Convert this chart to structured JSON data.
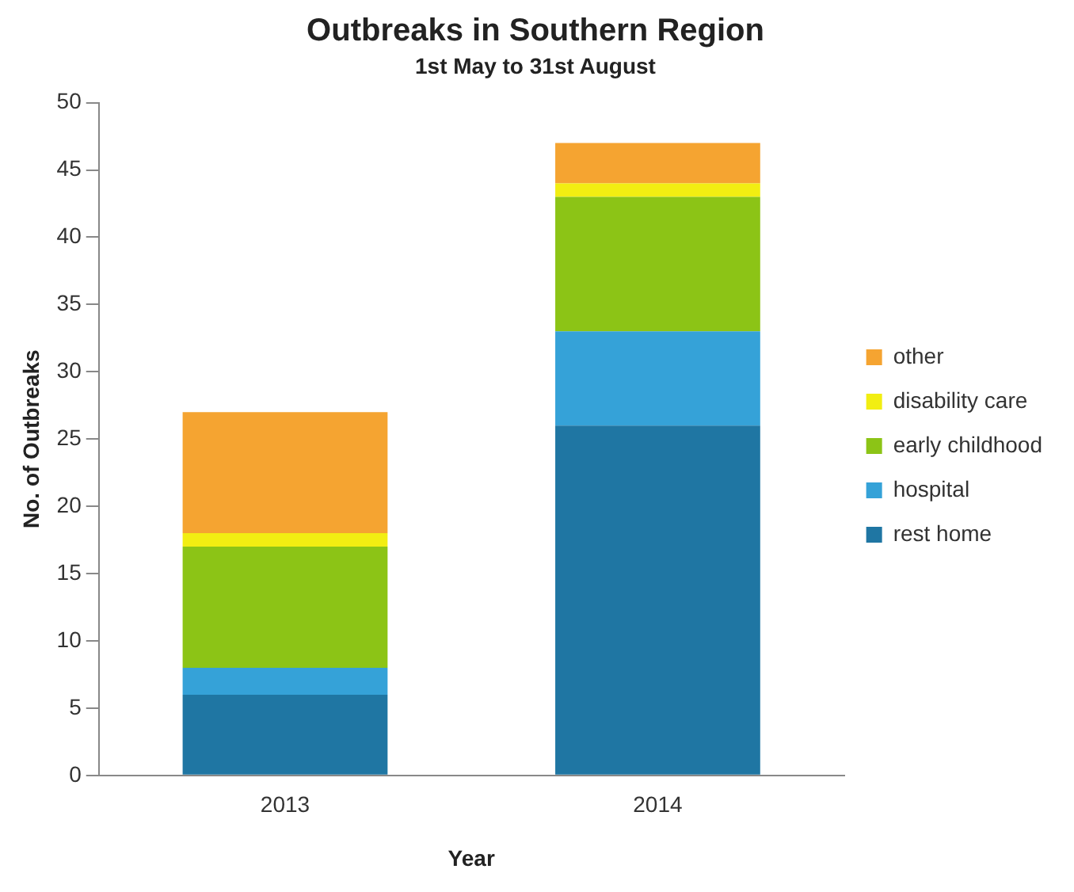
{
  "chart_data": {
    "type": "bar",
    "title": "Outbreaks in Southern Region",
    "subtitle": "1st May to 31st August",
    "xlabel": "Year",
    "ylabel": "No. of Outbreaks",
    "categories": [
      "2013",
      "2014"
    ],
    "stacked": true,
    "legend": "right",
    "grid": false,
    "ylim": [
      0,
      50
    ],
    "yticks": [
      0,
      5,
      10,
      15,
      20,
      25,
      30,
      35,
      40,
      45,
      50
    ],
    "series": [
      {
        "name": "rest home",
        "color": "#1f76a3",
        "values": [
          6,
          26
        ]
      },
      {
        "name": "hospital",
        "color": "#35a2d8",
        "values": [
          2,
          7
        ]
      },
      {
        "name": "early childhood",
        "color": "#8cc416",
        "values": [
          9,
          10
        ]
      },
      {
        "name": "disability care",
        "color": "#f2ee12",
        "values": [
          1,
          1
        ]
      },
      {
        "name": "other",
        "color": "#f5a431",
        "values": [
          9,
          3
        ]
      }
    ]
  }
}
